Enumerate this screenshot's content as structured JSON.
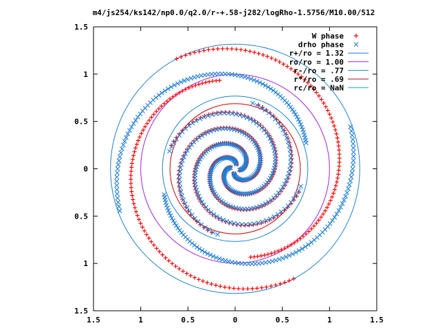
{
  "chart_data": {
    "type": "scatter",
    "title": "m4/js254/ks142/np0.0/q2.0/r-+.58-j282/logRho-1.5756/M10.00/512",
    "xlabel": "",
    "ylabel": "",
    "xlim": [
      -1.5,
      1.5
    ],
    "ylim": [
      -1.5,
      1.5
    ],
    "x_ticks": [
      -1.5,
      -1,
      -0.5,
      0,
      0.5,
      1,
      1.5
    ],
    "x_tick_labels": [
      "1.5",
      "1",
      "0.5",
      "0",
      "0.5",
      "1",
      "1.5"
    ],
    "y_ticks": [
      1.5,
      1,
      0.5,
      0,
      -0.5,
      -1,
      -1.5
    ],
    "y_tick_labels": [
      "1.5",
      "1",
      "0.5",
      "0",
      "0.5",
      "1",
      "1.5"
    ],
    "grid": false,
    "legend_position": "top-right",
    "series": [
      {
        "name": "W phase",
        "kind": "points",
        "marker": "plus",
        "color": "#ff0000",
        "arms": [
          {
            "r_start": 0.05,
            "r_end": 0.72,
            "theta_start": 160,
            "winding": 2.0
          },
          {
            "r_start": 0.05,
            "r_end": 0.72,
            "theta_start": 250,
            "winding": 2.0
          },
          {
            "r_start": 0.05,
            "r_end": 0.72,
            "theta_start": 340,
            "winding": 2.0
          },
          {
            "r_start": 0.05,
            "r_end": 0.72,
            "theta_start": 70,
            "winding": 2.0
          },
          {
            "r_start": 0.95,
            "r_end": 1.32,
            "theta_start": 100,
            "winding": 1.1
          },
          {
            "r_start": 0.95,
            "r_end": 1.32,
            "theta_start": 280,
            "winding": 1.1
          }
        ]
      },
      {
        "name": "drho phase",
        "kind": "points",
        "marker": "cross",
        "color": "#1e7fd6",
        "arms": [
          {
            "r_start": 0.05,
            "r_end": 0.72,
            "theta_start": 165,
            "winding": 2.0
          },
          {
            "r_start": 0.05,
            "r_end": 0.72,
            "theta_start": 255,
            "winding": 2.0
          },
          {
            "r_start": 0.05,
            "r_end": 0.72,
            "theta_start": 345,
            "winding": 2.0
          },
          {
            "r_start": 0.05,
            "r_end": 0.72,
            "theta_start": 75,
            "winding": 2.0
          },
          {
            "r_start": 0.8,
            "r_end": 1.3,
            "theta_start": 20,
            "winding": 1.0
          },
          {
            "r_start": 0.8,
            "r_end": 1.3,
            "theta_start": 200,
            "winding": 1.0
          }
        ]
      },
      {
        "name": "r+/ro = 1.32",
        "kind": "circle",
        "radius": 1.32,
        "color": "#1e7fd6"
      },
      {
        "name": "ro/ro = 1.00",
        "kind": "circle",
        "radius": 1.0,
        "color": "#a020f0"
      },
      {
        "name": "r-/ro = .77",
        "kind": "circle",
        "radius": 0.77,
        "color": "#1e7fd6"
      },
      {
        "name": "r*/ro = .69",
        "kind": "circle",
        "radius": 0.69,
        "color": "#cc0000"
      },
      {
        "name": "rc/ro = NaN",
        "kind": "circle",
        "radius": null,
        "color": "#00c0c0"
      }
    ]
  }
}
